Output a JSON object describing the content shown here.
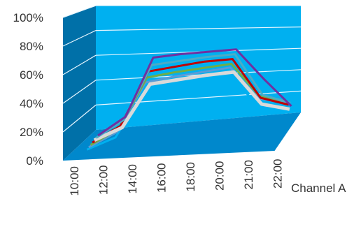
{
  "chart_data": {
    "type": "line",
    "style": "3d",
    "title": "",
    "xlabel": "",
    "ylabel": "",
    "categories": [
      "10:00",
      "12:00",
      "14:00",
      "16:00",
      "18:00",
      "20:00",
      "21:00",
      "22:00"
    ],
    "y_ticks": [
      "0%",
      "20%",
      "40%",
      "60%",
      "80%",
      "100%"
    ],
    "ylim": [
      0,
      100
    ],
    "grid": true,
    "depth_axis_labels": [
      "Channel A"
    ],
    "colors": {
      "back_wall": "#00b0f0",
      "side_wall": "#0070a8",
      "floor": "#0088cc",
      "gridline": "#e6f6ff"
    },
    "series": [
      {
        "color": "#00b0f0",
        "values": [
          0,
          5,
          38,
          38,
          38,
          37,
          6,
          0
        ]
      },
      {
        "color": "#5b9bd5",
        "values": [
          0,
          8,
          45,
          45,
          44,
          43,
          12,
          3
        ]
      },
      {
        "color": "#70ad47",
        "values": [
          0,
          9,
          48,
          48,
          47,
          46,
          14,
          5
        ]
      },
      {
        "color": "#c00000",
        "values": [
          0,
          10,
          52,
          52,
          52,
          50,
          13,
          3
        ]
      },
      {
        "color": "#d9d9d9",
        "values": [
          0,
          7,
          40,
          40,
          40,
          39,
          8,
          0
        ]
      },
      {
        "color": "#4bacc6",
        "values": [
          0,
          12,
          55,
          55,
          55,
          54,
          16,
          6
        ]
      },
      {
        "color": "#7030a0",
        "values": [
          0,
          13,
          60,
          60,
          59,
          58,
          30,
          4
        ]
      }
    ]
  }
}
